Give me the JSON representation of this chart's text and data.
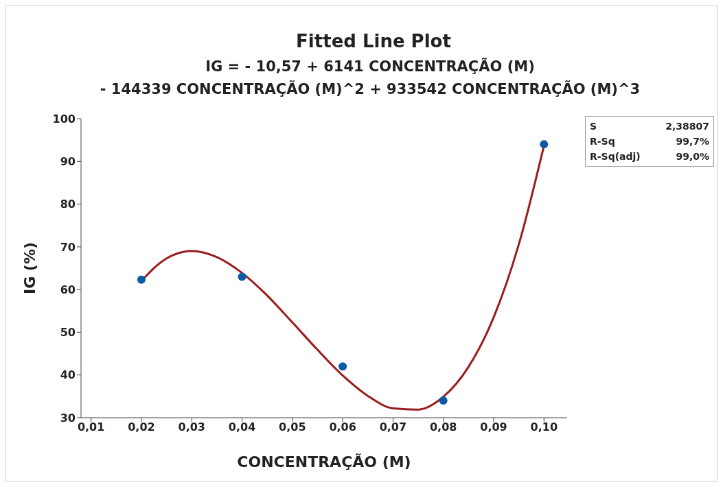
{
  "chart_data": {
    "type": "scatter",
    "title": "Fitted Line Plot",
    "subtitle": "IG = - 10,57 + 6141 CONCENTRAÇÃO (M)\n- 144339 CONCENTRAÇÃO (M)^2 + 933542 CONCENTRAÇÃO (M)^3",
    "xlabel": "CONCENTRAÇÃO (M)",
    "ylabel": "IG (%)",
    "annotations": [
      "S",
      "2,38807",
      "R-Sq",
      "99,7%",
      "R-Sq(adj)",
      "99,0%"
    ],
    "xlim": [
      0.008,
      0.1046
    ],
    "ylim": [
      30,
      100
    ],
    "xticks": [
      {
        "value": 0.01,
        "label": "0,01"
      },
      {
        "value": 0.02,
        "label": "0,02"
      },
      {
        "value": 0.03,
        "label": "0,03"
      },
      {
        "value": 0.04,
        "label": "0,04"
      },
      {
        "value": 0.05,
        "label": "0,05"
      },
      {
        "value": 0.06,
        "label": "0,06"
      },
      {
        "value": 0.07,
        "label": "0,07"
      },
      {
        "value": 0.08,
        "label": "0,08"
      },
      {
        "value": 0.09,
        "label": "0,09"
      },
      {
        "value": 0.1,
        "label": "0,10"
      }
    ],
    "yticks": [
      30,
      40,
      50,
      60,
      70,
      80,
      90,
      100
    ],
    "series": [
      {
        "type": "line",
        "color": "#9b1c1c",
        "marker": "none",
        "line_style": "solid",
        "x": [
          0.02,
          0.025,
          0.03,
          0.035,
          0.04,
          0.045,
          0.05,
          0.055,
          0.06,
          0.065,
          0.07,
          0.075,
          0.08,
          0.085,
          0.09,
          0.095,
          0.1
        ],
        "values": [
          62,
          67.3,
          69,
          67.6,
          63.9,
          58.6,
          52.3,
          45.9,
          39.9,
          35.1,
          32.2,
          31.9,
          34.9,
          41.9,
          53.5,
          70.6,
          93.7
        ]
      },
      {
        "color": "#0b5aa8",
        "marker": "circle",
        "x": [
          0.02,
          0.04,
          0.06,
          0.08,
          0.1
        ],
        "values": [
          62.3,
          63,
          42,
          34,
          94
        ]
      }
    ]
  }
}
